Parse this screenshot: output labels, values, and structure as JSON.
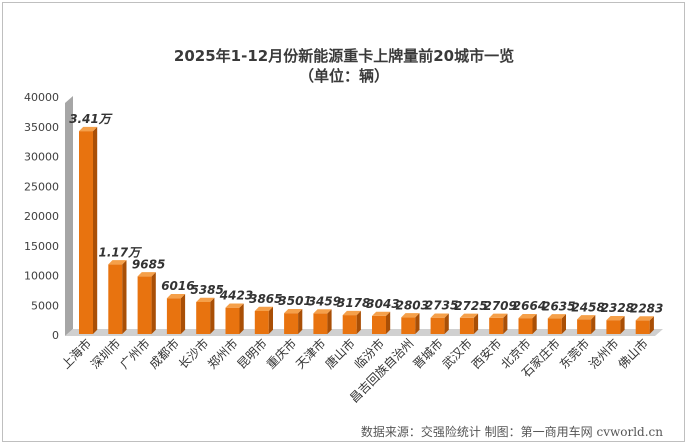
{
  "chart_data": {
    "type": "bar",
    "title": "2025年1-12月份新能源重卡上牌量前20城市一览",
    "subtitle": "（单位：辆）",
    "categories": [
      "上海市",
      "深圳市",
      "广州市",
      "成都市",
      "长沙市",
      "郑州市",
      "昆明市",
      "重庆市",
      "天津市",
      "唐山市",
      "临汾市",
      "昌吉回族自治州",
      "晋城市",
      "武汉市",
      "西安市",
      "北京市",
      "石家庄市",
      "东莞市",
      "沧州市",
      "佛山市"
    ],
    "values": [
      34100,
      11700,
      9685,
      6016,
      5385,
      4423,
      3865,
      3501,
      3459,
      3178,
      3043,
      2803,
      2735,
      2725,
      2709,
      2664,
      2635,
      2458,
      2328,
      2283
    ],
    "data_labels": [
      "3.41万",
      "1.17万",
      "9685",
      "6016",
      "5385",
      "4423",
      "3865",
      "3501",
      "3459",
      "3178",
      "3043",
      "2803",
      "2735",
      "2725",
      "2709",
      "2664",
      "2635",
      "2458",
      "2328",
      "2283"
    ],
    "yticks": [
      "0",
      "5000",
      "10000",
      "15000",
      "20000",
      "25000",
      "30000",
      "35000",
      "40000"
    ],
    "ylim": [
      0,
      40000
    ],
    "grid": false,
    "legend": "none",
    "colors": {
      "bar_front": "#e8730f",
      "bar_top": "#f5a04a",
      "bar_side": "#a94f06",
      "wall": "#a6a6a6",
      "floor": "#d0d0d0"
    }
  },
  "source": "数据来源：交强险统计   制图：第一商用车网 cvworld.cn"
}
